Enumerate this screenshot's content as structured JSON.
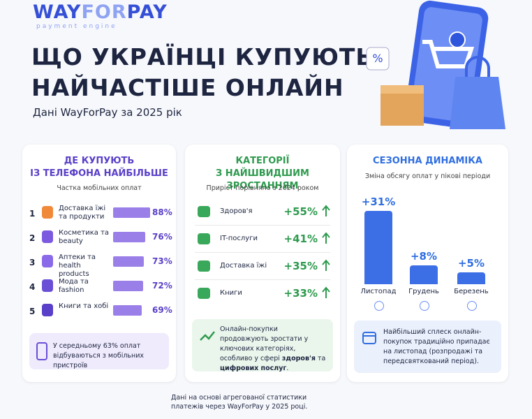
{
  "header": {
    "logo": [
      "WAY",
      "FOR",
      "PAY"
    ],
    "logo_sub": "payment engine",
    "title_lines": [
      "ЩО УКРАЇНЦІ КУПУЮТЬ",
      "НАЙЧАСТІШЕ ОНЛАЙН"
    ],
    "subtitle": "Дані WayForPay за 2025 рік"
  },
  "mobile": {
    "title_lines": [
      "ДЕ КУПУЮТЬ",
      "ІЗ ТЕЛЕФОНА НАЙБІЛЬШЕ"
    ],
    "subtitle": "Частка мобільних оплат",
    "ranks": [
      1,
      2,
      3,
      4,
      5
    ],
    "categories": [
      "Доставка їжі та продукти",
      "Косметика та beauty",
      "Аптеки та health products",
      "Мода та fashion",
      "Книги та хобі"
    ],
    "values": [
      88,
      76,
      73,
      72,
      69
    ],
    "value_labels": [
      "88%",
      "76%",
      "73%",
      "72%",
      "69%"
    ],
    "note": "У середньому 63% оплат відбуваються з мобільних пристроїв"
  },
  "growth": {
    "title_lines": [
      "КАТЕГОРІЇ",
      "З НАЙШВИДШИМ ЗРОСТАННЯМ"
    ],
    "subtitle": "Приріст порівняно з 2024 роком",
    "categories": [
      "Здоров'я",
      "IT-послуги",
      "Доставка їжі",
      "Книги"
    ],
    "values": [
      55,
      41,
      35,
      33
    ],
    "value_labels": [
      "+55%",
      "+41%",
      "+35%",
      "+33%"
    ],
    "note_parts": [
      "Онлайн-покупки продовжують зростати у ключових категоріях, особливо у сфері ",
      "здоров'я",
      " та ",
      "цифрових послуг",
      "."
    ]
  },
  "seasonal": {
    "title": "СЕЗОННА ДИНАМІКА",
    "subtitle": "Зміна обсягу оплат у пікові періоди",
    "categories": [
      "Листопад",
      "Грудень",
      "Березень"
    ],
    "values": [
      31,
      8,
      5
    ],
    "value_labels": [
      "+31%",
      "+8%",
      "+5%"
    ],
    "note": "Найбільший сплеск онлайн-покупок традиційно припадає на листопад (розпродажі та передсвяткований період)."
  },
  "footer": "Дані на основі агрегованої статистики платежів через WayForPay у 2025 році."
}
